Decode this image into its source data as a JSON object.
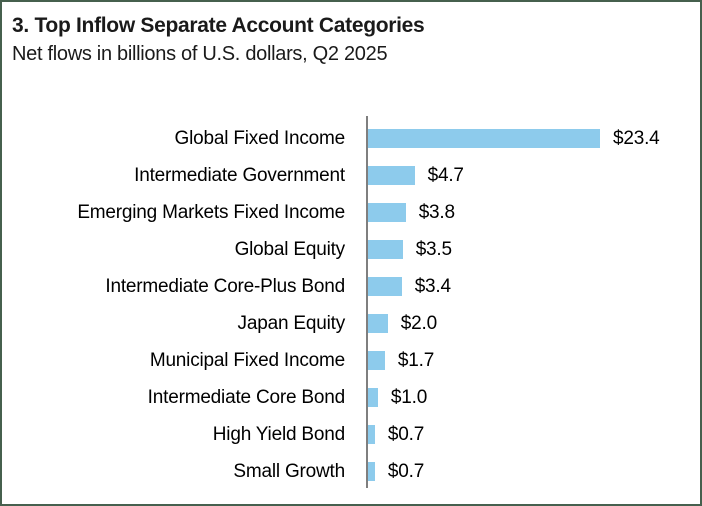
{
  "header": {
    "title": "3. Top Inflow Separate Account Categories",
    "subtitle": "Net flows in billions of U.S. dollars, Q2 2025"
  },
  "colors": {
    "bar": "#8DCBEC",
    "axis_line": "#7F7F7F",
    "figure_border": "#46604E",
    "text": "#1A1A1A"
  },
  "chart_data": {
    "type": "bar",
    "orientation": "horizontal",
    "title": "3. Top Inflow Separate Account Categories",
    "subtitle": "Net flows in billions of U.S. dollars, Q2 2025",
    "unit": "billions of U.S. dollars",
    "period": "Q2 2025",
    "categories": [
      "Global Fixed Income",
      "Intermediate Government",
      "Emerging Markets Fixed Income",
      "Global Equity",
      "Intermediate Core-Plus Bond",
      "Japan Equity",
      "Municipal Fixed Income",
      "Intermediate Core Bond",
      "High Yield Bond",
      "Small Growth"
    ],
    "values": [
      23.4,
      4.7,
      3.8,
      3.5,
      3.4,
      2.0,
      1.7,
      1.0,
      0.7,
      0.7
    ],
    "value_labels": [
      "$23.4",
      "$4.7",
      "$3.8",
      "$3.5",
      "$3.4",
      "$2.0",
      "$1.7",
      "$1.0",
      "$0.7",
      "$0.7"
    ],
    "xlabel": "",
    "ylabel": "",
    "xlim": [
      0,
      24
    ],
    "grid": false,
    "legend": "none",
    "bar_color": "#8DCBEC"
  }
}
